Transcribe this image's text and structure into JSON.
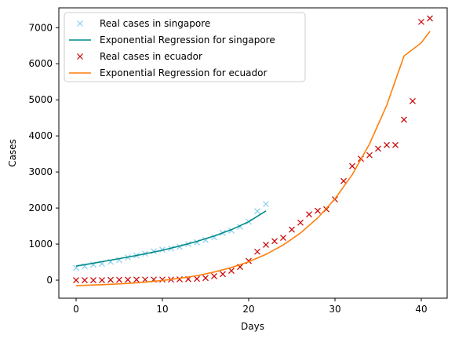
{
  "chart_data": {
    "type": "scatter",
    "title": "",
    "xlabel": "Days",
    "ylabel": "Cases",
    "xlim": [
      -2,
      43
    ],
    "ylim": [
      -500,
      7550
    ],
    "xticks": [
      0,
      10,
      20,
      30,
      40
    ],
    "yticks": [
      0,
      1000,
      2000,
      3000,
      4000,
      5000,
      6000,
      7000
    ],
    "grid": false,
    "legend_position": "upper-left",
    "series": [
      {
        "name": "Real cases in singapore",
        "kind": "scatter",
        "marker": "x",
        "color": "#87ceeb",
        "x": [
          0,
          1,
          2,
          3,
          4,
          5,
          6,
          7,
          8,
          9,
          10,
          11,
          12,
          13,
          14,
          15,
          16,
          17,
          18,
          19,
          20,
          21,
          22
        ],
        "y": [
          345,
          385,
          432,
          455,
          509,
          558,
          631,
          683,
          732,
          802,
          844,
          879,
          926,
          1000,
          1049,
          1114,
          1189,
          1309,
          1375,
          1481,
          1623,
          1910,
          2108
        ]
      },
      {
        "name": "Exponential Regression for singapore",
        "kind": "line",
        "color": "#008b8b",
        "x": [
          0,
          2,
          4,
          6,
          8,
          10,
          12,
          14,
          16,
          18,
          20,
          22
        ],
        "y": [
          390,
          470,
          555,
          640,
          730,
          830,
          945,
          1075,
          1225,
          1400,
          1620,
          1920
        ]
      },
      {
        "name": "Real cases in ecuador",
        "kind": "scatter",
        "marker": "x",
        "color": "#cc0000",
        "x": [
          0,
          1,
          2,
          3,
          4,
          5,
          6,
          7,
          8,
          9,
          10,
          11,
          12,
          13,
          14,
          15,
          16,
          17,
          18,
          19,
          20,
          21,
          22,
          23,
          24,
          25,
          26,
          27,
          28,
          29,
          30,
          31,
          32,
          33,
          34,
          35,
          36,
          37,
          38,
          39,
          40,
          41
        ],
        "y": [
          0,
          0,
          0,
          0,
          7,
          10,
          13,
          15,
          17,
          17,
          17,
          17,
          23,
          28,
          37,
          58,
          111,
          168,
          260,
          367,
          532,
          789,
          981,
          1082,
          1173,
          1403,
          1595,
          1823,
          1924,
          1966,
          2240,
          2748,
          3163,
          3368,
          3465,
          3646,
          3747,
          3747,
          4450,
          4965,
          7161,
          7257
        ]
      },
      {
        "name": "Exponential Regression for ecuador",
        "kind": "line",
        "color": "#ff7f0e",
        "x": [
          0,
          2,
          4,
          6,
          8,
          10,
          12,
          14,
          16,
          18,
          20,
          22,
          24,
          26,
          28,
          30,
          32,
          34,
          36,
          38,
          40,
          41
        ],
        "y": [
          -150,
          -135,
          -115,
          -90,
          -55,
          -10,
          50,
          125,
          225,
          350,
          510,
          715,
          975,
          1305,
          1725,
          2255,
          2925,
          3775,
          4850,
          6215,
          6580,
          6900
        ]
      }
    ]
  }
}
